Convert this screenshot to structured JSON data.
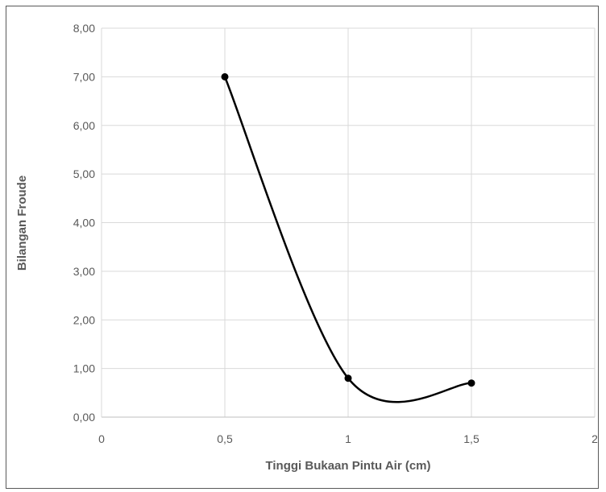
{
  "chart_data": {
    "type": "scatter",
    "smooth_line": true,
    "title": "",
    "xlabel": "Tinggi Bukaan Pintu Air (cm)",
    "ylabel": "Bilangan Froude",
    "xlim": [
      0,
      2
    ],
    "ylim": [
      0,
      8
    ],
    "grid": true,
    "legend": "none",
    "x_ticks": [
      0,
      0.5,
      1,
      1.5,
      2
    ],
    "x_tick_labels": [
      "0",
      "0,5",
      "1",
      "1,5",
      "2"
    ],
    "y_ticks": [
      0,
      1,
      2,
      3,
      4,
      5,
      6,
      7,
      8
    ],
    "y_tick_labels": [
      "0,00",
      "1,00",
      "2,00",
      "3,00",
      "4,00",
      "5,00",
      "6,00",
      "7,00",
      "8,00"
    ],
    "series": [
      {
        "x": [
          0.5,
          1,
          1.5
        ],
        "y": [
          7.0,
          0.8,
          0.7
        ],
        "color": "#000000"
      }
    ]
  }
}
